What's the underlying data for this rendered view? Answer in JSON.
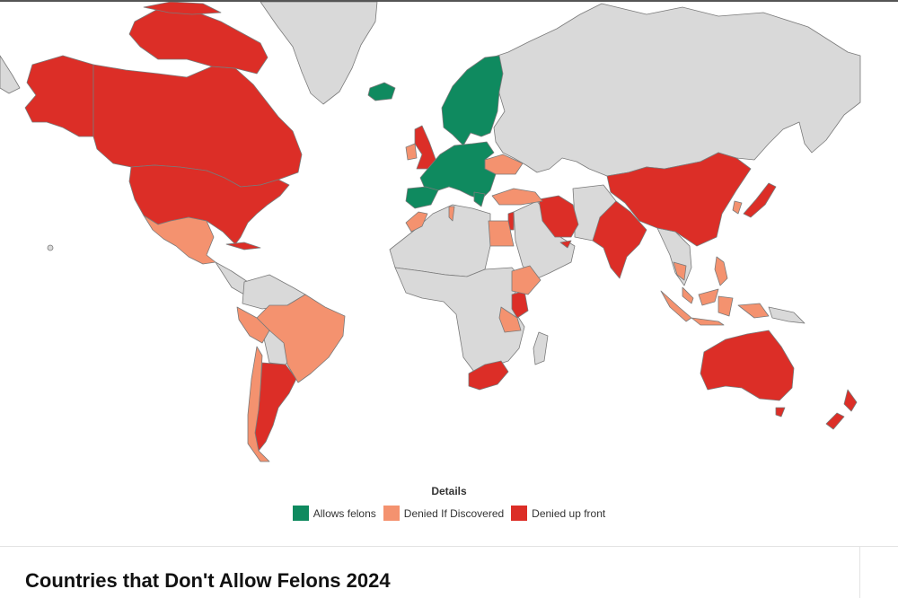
{
  "legend": {
    "title": "Details",
    "items": [
      {
        "label": "Allows felons",
        "color": "#0f8a5f"
      },
      {
        "label": "Denied If Discovered",
        "color": "#f4926f"
      },
      {
        "label": "Denied up front",
        "color": "#dc2e27"
      }
    ]
  },
  "colors": {
    "no_data": "#d9d9d9",
    "border": "#7a7a7a"
  },
  "regions": [
    {
      "name": "Canada",
      "category": "Denied up front"
    },
    {
      "name": "United States",
      "category": "Denied up front"
    },
    {
      "name": "Mexico",
      "category": "Denied If Discovered"
    },
    {
      "name": "Cuba",
      "category": "Denied up front"
    },
    {
      "name": "Brazil",
      "category": "Denied If Discovered"
    },
    {
      "name": "Peru",
      "category": "Denied If Discovered"
    },
    {
      "name": "Argentina",
      "category": "Denied up front"
    },
    {
      "name": "Chile",
      "category": "Denied If Discovered"
    },
    {
      "name": "Iceland",
      "category": "Allows felons"
    },
    {
      "name": "United Kingdom",
      "category": "Denied up front"
    },
    {
      "name": "Ireland",
      "category": "Denied If Discovered"
    },
    {
      "name": "Schengen Europe",
      "category": "Allows felons"
    },
    {
      "name": "Ukraine",
      "category": "Denied If Discovered"
    },
    {
      "name": "Turkey",
      "category": "Denied If Discovered"
    },
    {
      "name": "Morocco",
      "category": "Denied If Discovered"
    },
    {
      "name": "Egypt",
      "category": "Denied If Discovered"
    },
    {
      "name": "Israel",
      "category": "Denied up front"
    },
    {
      "name": "Iran",
      "category": "Denied up front"
    },
    {
      "name": "UAE",
      "category": "Denied up front"
    },
    {
      "name": "Ethiopia",
      "category": "Denied If Discovered"
    },
    {
      "name": "Kenya",
      "category": "Denied up front"
    },
    {
      "name": "Tanzania",
      "category": "Denied If Discovered"
    },
    {
      "name": "South Africa",
      "category": "Denied up front"
    },
    {
      "name": "India",
      "category": "Denied up front"
    },
    {
      "name": "China",
      "category": "Denied up front"
    },
    {
      "name": "Japan",
      "category": "Denied up front"
    },
    {
      "name": "South Korea",
      "category": "Denied If Discovered"
    },
    {
      "name": "Thailand",
      "category": "Denied If Discovered"
    },
    {
      "name": "Philippines",
      "category": "Denied If Discovered"
    },
    {
      "name": "Malaysia",
      "category": "Denied If Discovered"
    },
    {
      "name": "Indonesia",
      "category": "Denied If Discovered"
    },
    {
      "name": "Australia",
      "category": "Denied up front"
    },
    {
      "name": "New Zealand",
      "category": "Denied up front"
    }
  ],
  "page": {
    "title": "Countries that Don't Allow Felons 2024"
  }
}
